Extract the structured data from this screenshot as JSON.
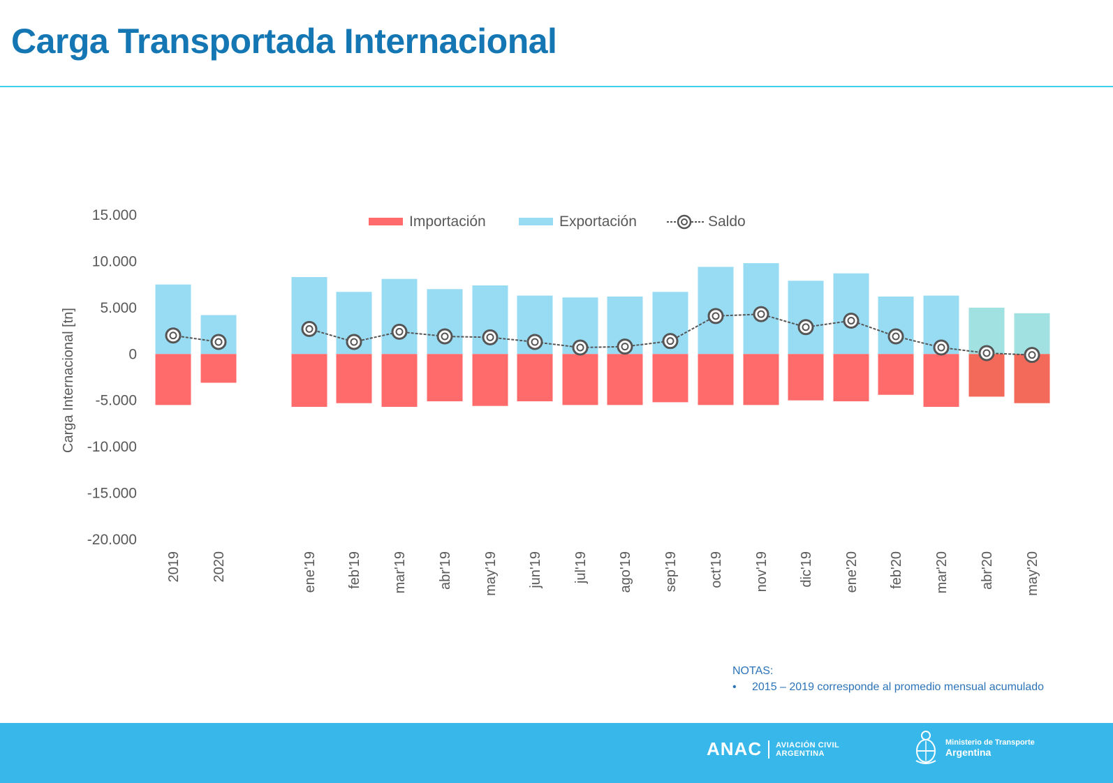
{
  "page": {
    "title": "Carga Transportada Internacional"
  },
  "chart_data": {
    "type": "bar",
    "ylabel": "Carga Internacional [tn]",
    "ylim": [
      -20000,
      15000
    ],
    "yticks": [
      15000,
      10000,
      5000,
      0,
      -5000,
      -10000,
      -15000,
      -20000
    ],
    "ytick_labels": [
      "15.000",
      "10.000",
      "5.000",
      "0",
      "-5.000",
      "-10.000",
      "-15.000",
      "-20.000"
    ],
    "legend_position": "top",
    "categories": [
      "2019",
      "2020",
      "ene'19",
      "feb'19",
      "mar'19",
      "abr'19",
      "may'19",
      "jun'19",
      "jul'19",
      "ago'19",
      "sep'19",
      "oct'19",
      "nov'19",
      "dic'19",
      "ene'20",
      "feb'20",
      "mar'20",
      "abr'20",
      "may'20"
    ],
    "series": [
      {
        "name": "Importación",
        "kind": "bar",
        "color": "#ff6b6b",
        "values": [
          -5500,
          -3100,
          -5700,
          -5300,
          -5700,
          -5100,
          -5600,
          -5100,
          -5500,
          -5500,
          -5200,
          -5500,
          -5500,
          -5000,
          -5100,
          -4400,
          -5700,
          -4600,
          -5300
        ]
      },
      {
        "name": "Exportación",
        "kind": "bar",
        "color": "#98dcf4",
        "values": [
          7500,
          4200,
          8300,
          6700,
          8100,
          7000,
          7400,
          6300,
          6100,
          6200,
          6700,
          9400,
          9800,
          7900,
          8700,
          6200,
          6300,
          5000,
          4400
        ]
      },
      {
        "name": "Saldo",
        "kind": "line",
        "color": "#555555",
        "values": [
          2000,
          1300,
          2700,
          1300,
          2400,
          1900,
          1800,
          1300,
          700,
          800,
          1400,
          4100,
          4300,
          2900,
          3600,
          1900,
          700,
          100,
          -100
        ]
      }
    ],
    "highlight_colors": {
      "import": "#f46a5a",
      "export": "#a2e1e2",
      "categories": [
        "abr'20",
        "may'20"
      ]
    }
  },
  "notes": {
    "heading": "NOTAS:",
    "bullet": "•",
    "items": [
      "2015 – 2019 corresponde al promedio mensual acumulado"
    ]
  },
  "footer": {
    "anac_mark": "ANAC",
    "anac_line1": "AVIACIÓN CIVIL",
    "anac_line2": "ARGENTINA",
    "ministerio_line1": "Ministerio de Transporte",
    "ministerio_line2": "Argentina",
    "background": "#38b8ea"
  }
}
